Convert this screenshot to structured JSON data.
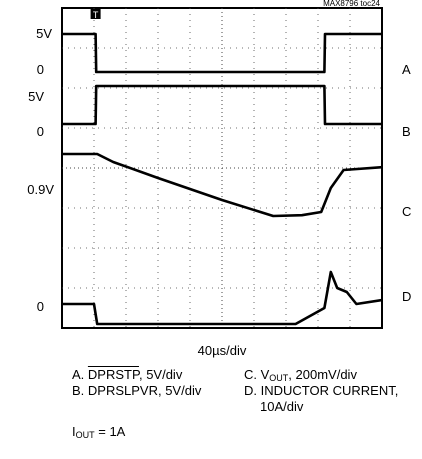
{
  "figure_id": "MAX8796 toc24",
  "timebase": "40µs/div",
  "iout": {
    "prefix": "I",
    "sub": "OUT",
    "suffix": " = 1A"
  },
  "legend": {
    "a_prefix": "A. ",
    "a_name": "DPRSTP",
    "a_suffix": ", 5V/div",
    "b": "B. DPRSLPVR, 5V/div",
    "c_prefix": "C. V",
    "c_sub": "OUT",
    "c_suffix": ", 200mV/div",
    "d_line1": "D. INDUCTOR CURRENT,",
    "d_line2": "10A/div"
  },
  "chart_data": {
    "type": "line",
    "title": "",
    "x_unit": "div",
    "x_range": [
      0,
      10
    ],
    "y_unit": "div",
    "y_range": [
      0,
      8
    ],
    "grid": true,
    "trigger_marker": "T",
    "series": [
      {
        "name": "A",
        "scale": "5V/div",
        "ref_label": "0",
        "level_label": "5V",
        "x": [
          0,
          1.05,
          1.07,
          8.2,
          8.22,
          10
        ],
        "y": [
          7.35,
          7.35,
          6.4,
          6.4,
          7.35,
          7.35
        ]
      },
      {
        "name": "B",
        "scale": "5V/div",
        "ref_label": "0",
        "level_label": "5V",
        "x": [
          0,
          1.05,
          1.07,
          8.2,
          8.22,
          10
        ],
        "y": [
          5.1,
          5.1,
          6.05,
          6.05,
          5.1,
          5.1
        ]
      },
      {
        "name": "C",
        "scale": "200mV/div",
        "level_label": "0.9V",
        "x": [
          0,
          1.1,
          1.6,
          3,
          5,
          6.6,
          7.5,
          8.1,
          8.4,
          8.8,
          10
        ],
        "y": [
          4.35,
          4.35,
          4.15,
          3.75,
          3.2,
          2.8,
          2.82,
          2.9,
          3.5,
          3.95,
          4.02
        ]
      },
      {
        "name": "D",
        "scale": "10A/div",
        "ref_label": "0",
        "x": [
          0,
          1.0,
          1.1,
          6.2,
          7.3,
          8.2,
          8.4,
          8.6,
          8.9,
          9.2,
          10
        ],
        "y": [
          0.6,
          0.6,
          0.1,
          0.1,
          0.1,
          0.5,
          1.4,
          1.0,
          0.9,
          0.6,
          0.7
        ]
      }
    ]
  }
}
